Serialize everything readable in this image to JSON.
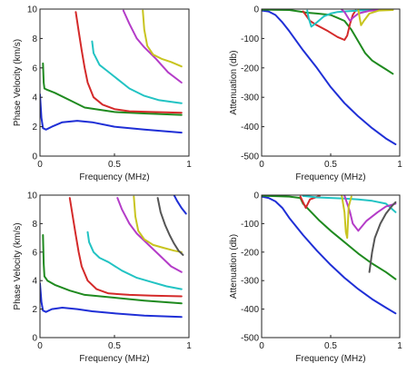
{
  "chart_data": [
    {
      "type": "line",
      "title": "",
      "xlabel": "Frequency (MHz)",
      "ylabel": "Phase Velocity (km/s)",
      "xlim": [
        0,
        1
      ],
      "ylim": [
        0,
        10
      ],
      "xticks": [
        "0",
        "0.5",
        "1"
      ],
      "yticks": [
        "0",
        "2",
        "4",
        "6",
        "8",
        "10"
      ],
      "grid": false,
      "legend": "none",
      "series": [
        {
          "color": "#1f2fd6",
          "x": [
            0.0,
            0.01,
            0.02,
            0.04,
            0.08,
            0.15,
            0.25,
            0.35,
            0.5,
            0.7,
            0.95
          ],
          "y": [
            4.2,
            2.6,
            1.9,
            1.8,
            2.0,
            2.3,
            2.4,
            2.3,
            2.0,
            1.8,
            1.6
          ]
        },
        {
          "color": "#1f8a1f",
          "x": [
            0.02,
            0.025,
            0.03,
            0.05,
            0.1,
            0.2,
            0.3,
            0.5,
            0.7,
            0.95
          ],
          "y": [
            6.3,
            5.0,
            4.6,
            4.5,
            4.3,
            3.8,
            3.3,
            3.0,
            2.9,
            2.8
          ]
        },
        {
          "color": "#d42a2a",
          "x": [
            0.24,
            0.26,
            0.28,
            0.3,
            0.32,
            0.36,
            0.42,
            0.5,
            0.6,
            0.75,
            0.95
          ],
          "y": [
            9.8,
            8.5,
            7.2,
            6.0,
            5.0,
            4.0,
            3.5,
            3.2,
            3.05,
            3.0,
            2.95
          ]
        },
        {
          "color": "#22c3c3",
          "x": [
            0.35,
            0.36,
            0.4,
            0.45,
            0.5,
            0.6,
            0.7,
            0.8,
            0.95
          ],
          "y": [
            7.8,
            7.0,
            6.2,
            5.8,
            5.4,
            4.6,
            4.1,
            3.8,
            3.6
          ]
        },
        {
          "color": "#b43cc8",
          "x": [
            0.56,
            0.6,
            0.65,
            0.7,
            0.78,
            0.86,
            0.95
          ],
          "y": [
            9.9,
            9.0,
            8.0,
            7.4,
            6.6,
            5.7,
            5.0
          ]
        },
        {
          "color": "#c8c41f",
          "x": [
            0.69,
            0.7,
            0.72,
            0.76,
            0.82,
            0.88,
            0.95
          ],
          "y": [
            9.9,
            8.6,
            7.5,
            6.9,
            6.6,
            6.4,
            6.1
          ]
        }
      ]
    },
    {
      "type": "line",
      "title": "",
      "xlabel": "Frequency (MHz)",
      "ylabel": "Attenuation (db)",
      "xlim": [
        0,
        1
      ],
      "ylim": [
        -500,
        0
      ],
      "xticks": [
        "0",
        "0.5",
        "1"
      ],
      "yticks": [
        "0",
        "-100",
        "-200",
        "-300",
        "-400",
        "-500"
      ],
      "grid": false,
      "legend": "none",
      "series": [
        {
          "color": "#1f2fd6",
          "x": [
            0.0,
            0.05,
            0.1,
            0.15,
            0.2,
            0.3,
            0.4,
            0.5,
            0.6,
            0.7,
            0.8,
            0.9,
            0.97
          ],
          "y": [
            -5,
            -8,
            -20,
            -45,
            -75,
            -140,
            -200,
            -265,
            -320,
            -365,
            -405,
            -440,
            -460
          ]
        },
        {
          "color": "#1f8a1f",
          "x": [
            0.0,
            0.2,
            0.3,
            0.32,
            0.4,
            0.5,
            0.55,
            0.6,
            0.65,
            0.7,
            0.75,
            0.8,
            0.85,
            0.9,
            0.95
          ],
          "y": [
            -2,
            -3,
            -10,
            -12,
            -15,
            -20,
            -30,
            -40,
            -70,
            -110,
            -150,
            -175,
            -190,
            -205,
            -220
          ]
        },
        {
          "color": "#d42a2a",
          "x": [
            0.3,
            0.32,
            0.35,
            0.4,
            0.48,
            0.55,
            0.6,
            0.62,
            0.64,
            0.66,
            0.68
          ],
          "y": [
            -8,
            -20,
            -40,
            -55,
            -75,
            -95,
            -105,
            -90,
            -50,
            -20,
            -5
          ]
        },
        {
          "color": "#22c3c3",
          "x": [
            0.33,
            0.34,
            0.36,
            0.4,
            0.45,
            0.5,
            0.55,
            0.6,
            0.7,
            0.8,
            0.95
          ],
          "y": [
            -5,
            -30,
            -60,
            -45,
            -25,
            -15,
            -10,
            -8,
            -5,
            -3,
            -2
          ]
        },
        {
          "color": "#b43cc8",
          "x": [
            0.58,
            0.6,
            0.62,
            0.64,
            0.66,
            0.7,
            0.78,
            0.86,
            0.95
          ],
          "y": [
            -2,
            -10,
            -25,
            -40,
            -30,
            -15,
            -6,
            -3,
            -2
          ]
        },
        {
          "color": "#c8c41f",
          "x": [
            0.7,
            0.71,
            0.72,
            0.74,
            0.78,
            0.85,
            0.95
          ],
          "y": [
            -2,
            -30,
            -55,
            -40,
            -15,
            -5,
            -3
          ]
        }
      ]
    },
    {
      "type": "line",
      "title": "",
      "xlabel": "Frequency (MHz)",
      "ylabel": "Phase Velocity (km/s)",
      "xlim": [
        0,
        1
      ],
      "ylim": [
        0,
        10
      ],
      "xticks": [
        "0",
        "0.5",
        "1"
      ],
      "yticks": [
        "0",
        "2",
        "4",
        "6",
        "8",
        "10"
      ],
      "grid": false,
      "legend": "none",
      "series": [
        {
          "color": "#1f2fd6",
          "x": [
            0.0,
            0.01,
            0.02,
            0.04,
            0.08,
            0.15,
            0.25,
            0.35,
            0.5,
            0.7,
            0.95
          ],
          "y": [
            3.8,
            2.5,
            1.9,
            1.8,
            2.0,
            2.1,
            2.0,
            1.85,
            1.7,
            1.55,
            1.45
          ]
        },
        {
          "color": "#1f8a1f",
          "x": [
            0.02,
            0.025,
            0.03,
            0.05,
            0.1,
            0.2,
            0.3,
            0.5,
            0.7,
            0.95
          ],
          "y": [
            7.2,
            5.2,
            4.3,
            4.0,
            3.7,
            3.3,
            3.0,
            2.8,
            2.6,
            2.4
          ]
        },
        {
          "color": "#d42a2a",
          "x": [
            0.2,
            0.22,
            0.24,
            0.26,
            0.28,
            0.32,
            0.38,
            0.46,
            0.6,
            0.75,
            0.95
          ],
          "y": [
            9.8,
            8.5,
            7.2,
            6.0,
            5.0,
            4.0,
            3.4,
            3.1,
            3.0,
            2.95,
            2.9
          ]
        },
        {
          "color": "#22c3c3",
          "x": [
            0.32,
            0.33,
            0.36,
            0.4,
            0.46,
            0.55,
            0.65,
            0.75,
            0.85,
            0.95
          ],
          "y": [
            7.4,
            6.7,
            6.0,
            5.6,
            5.3,
            4.7,
            4.2,
            3.9,
            3.6,
            3.4
          ]
        },
        {
          "color": "#b43cc8",
          "x": [
            0.52,
            0.55,
            0.6,
            0.65,
            0.72,
            0.8,
            0.88,
            0.95
          ],
          "y": [
            9.8,
            9.0,
            8.0,
            7.3,
            6.6,
            5.8,
            5.0,
            4.6
          ]
        },
        {
          "color": "#c8c41f",
          "x": [
            0.63,
            0.64,
            0.66,
            0.7,
            0.76,
            0.83,
            0.9,
            0.95
          ],
          "y": [
            9.9,
            8.5,
            7.5,
            6.9,
            6.5,
            6.3,
            6.1,
            6.0
          ]
        },
        {
          "color": "#555555",
          "x": [
            0.79,
            0.81,
            0.84,
            0.87,
            0.9,
            0.93,
            0.96
          ],
          "y": [
            9.8,
            8.8,
            7.9,
            7.2,
            6.6,
            6.1,
            5.8
          ]
        },
        {
          "color": "#1f2fd6",
          "x": [
            0.9,
            0.92,
            0.95,
            0.98
          ],
          "y": [
            10.0,
            9.6,
            9.1,
            8.7
          ]
        }
      ]
    },
    {
      "type": "line",
      "title": "",
      "xlabel": "Frequency (MHz)",
      "ylabel": "Attenuation (db)",
      "xlim": [
        0,
        1
      ],
      "ylim": [
        -500,
        0
      ],
      "xticks": [
        "0",
        "0.5",
        "1"
      ],
      "yticks": [
        "0",
        "-100",
        "-200",
        "-300",
        "-400",
        "-500"
      ],
      "grid": false,
      "legend": "none",
      "series": [
        {
          "color": "#1f2fd6",
          "x": [
            0.0,
            0.05,
            0.1,
            0.15,
            0.2,
            0.3,
            0.4,
            0.5,
            0.6,
            0.7,
            0.8,
            0.9,
            0.97
          ],
          "y": [
            -5,
            -10,
            -22,
            -45,
            -80,
            -140,
            -195,
            -245,
            -290,
            -330,
            -365,
            -395,
            -415
          ]
        },
        {
          "color": "#1f8a1f",
          "x": [
            0.0,
            0.2,
            0.28,
            0.3,
            0.35,
            0.42,
            0.5,
            0.6,
            0.7,
            0.8,
            0.9,
            0.97
          ],
          "y": [
            -2,
            -5,
            -10,
            -30,
            -55,
            -90,
            -125,
            -165,
            -205,
            -240,
            -270,
            -295
          ]
        },
        {
          "color": "#d42a2a",
          "x": [
            0.28,
            0.3,
            0.32,
            0.35,
            0.42
          ],
          "y": [
            -5,
            -25,
            -45,
            -15,
            -3
          ]
        },
        {
          "color": "#22c3c3",
          "x": [
            0.3,
            0.35,
            0.4,
            0.5,
            0.6,
            0.7,
            0.8,
            0.9,
            0.97
          ],
          "y": [
            -3,
            -5,
            -8,
            -10,
            -12,
            -15,
            -20,
            -30,
            -60
          ]
        },
        {
          "color": "#b43cc8",
          "x": [
            0.6,
            0.62,
            0.64,
            0.66,
            0.7,
            0.76,
            0.84,
            0.9,
            0.97
          ],
          "y": [
            -2,
            -30,
            -60,
            -100,
            -125,
            -90,
            -60,
            -40,
            -30
          ]
        },
        {
          "color": "#c8c41f",
          "x": [
            0.58,
            0.6,
            0.61,
            0.62,
            0.63,
            0.65
          ],
          "y": [
            -2,
            -60,
            -130,
            -150,
            -40,
            -5
          ]
        },
        {
          "color": "#555555",
          "x": [
            0.78,
            0.8,
            0.82,
            0.86,
            0.9,
            0.94,
            0.97
          ],
          "y": [
            -270,
            -200,
            -150,
            -100,
            -65,
            -40,
            -25
          ]
        }
      ]
    }
  ]
}
